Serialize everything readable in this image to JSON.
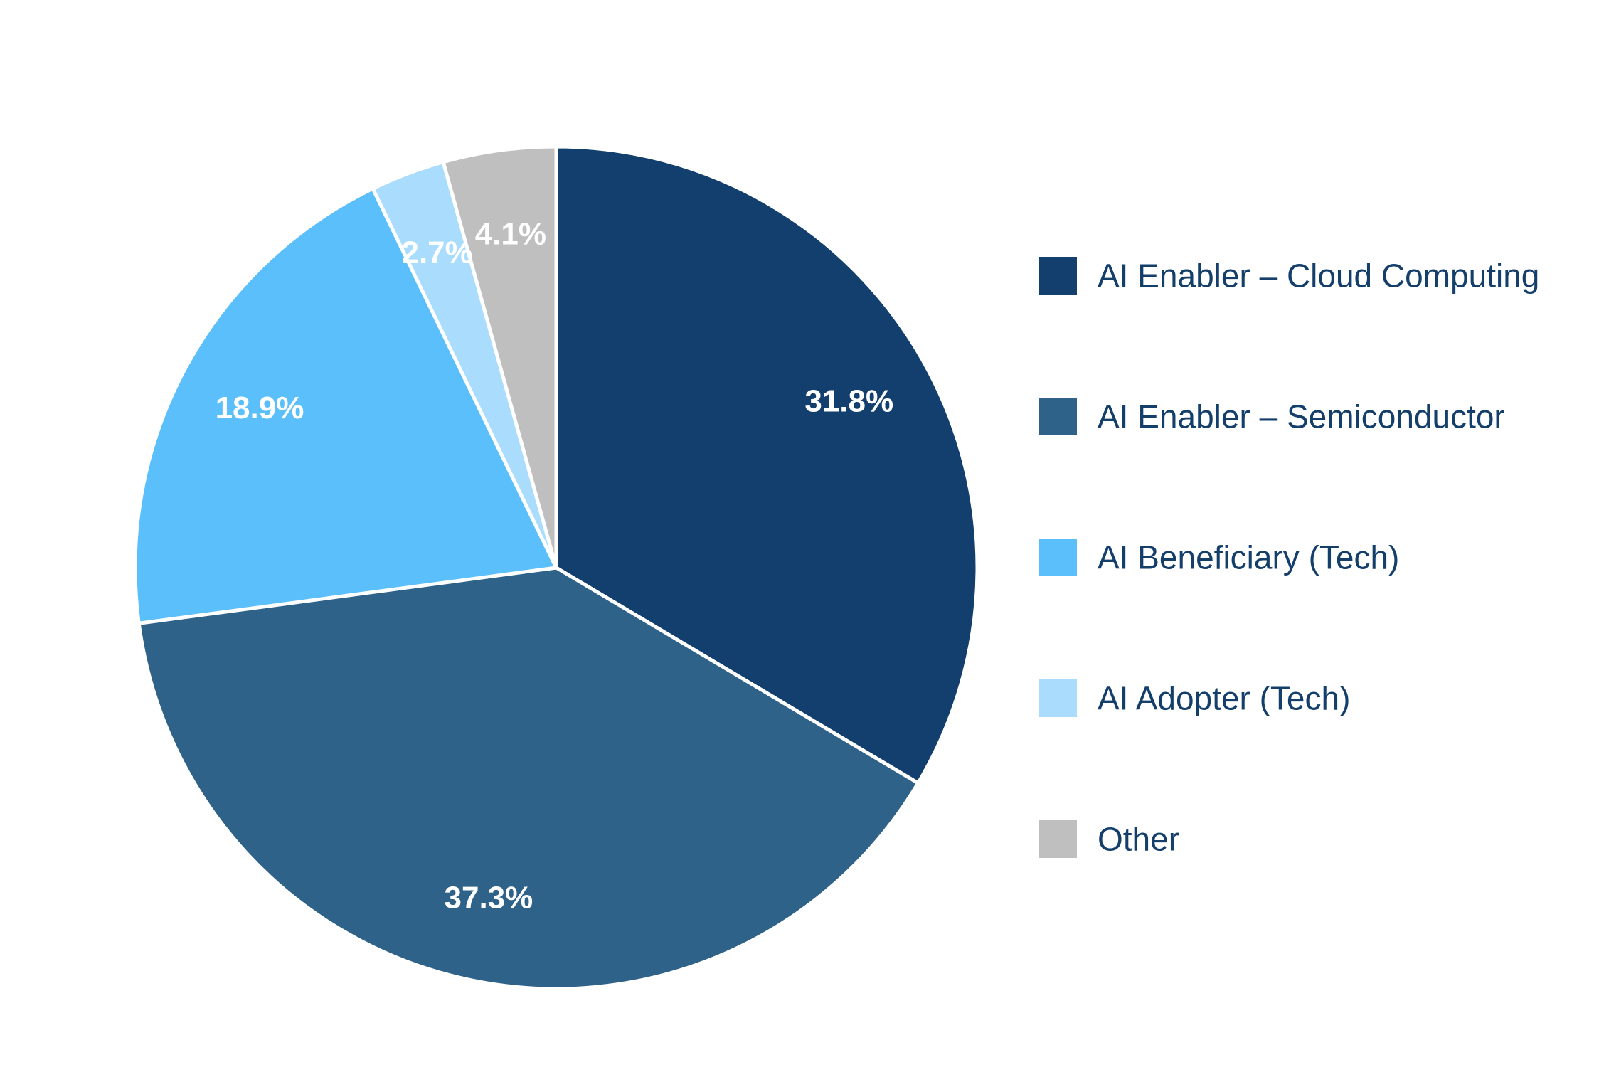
{
  "chart_data": {
    "type": "pie",
    "title": "",
    "start": "12 o'clock",
    "direction": "clockwise",
    "legend_position": "right",
    "slices": [
      {
        "label": "AI Enabler – Cloud Computing",
        "value": 31.8,
        "display": "31.8%",
        "color": "#123f6d"
      },
      {
        "label": "AI Enabler – Semiconductor",
        "value": 37.3,
        "display": "37.3%",
        "color": "#2f6289"
      },
      {
        "label": "AI Beneficiary (Tech)",
        "value": 18.9,
        "display": "18.9%",
        "color": "#5bbffc"
      },
      {
        "label": "AI Adopter (Tech)",
        "value": 2.7,
        "display": "2.7%",
        "color": "#a9dcfd"
      },
      {
        "label": "Other",
        "value": 4.1,
        "display": "4.1%",
        "color": "#bfbfbf"
      }
    ]
  },
  "colors": {
    "legend_text": "#143f6b",
    "slice_label_text": "#ffffff",
    "slice_border": "#ffffff",
    "background": "#ffffff"
  }
}
